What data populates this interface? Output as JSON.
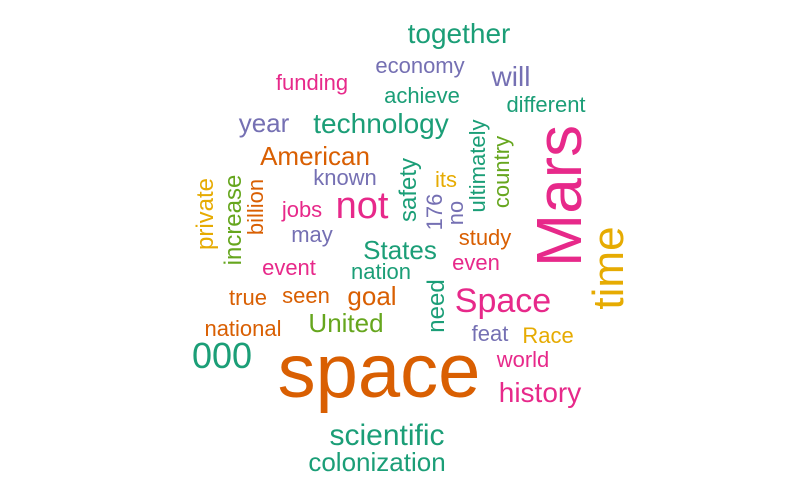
{
  "palette": {
    "teal": "#1b9e77",
    "orange": "#d95f02",
    "purple": "#7570b3",
    "magenta": "#e7298a",
    "green": "#66a61e",
    "gold": "#e6ab02"
  },
  "words": [
    {
      "text": "space",
      "color": "orange",
      "vertical": false
    },
    {
      "text": "Mars",
      "color": "magenta",
      "vertical": true
    },
    {
      "text": "time",
      "color": "gold",
      "vertical": true
    },
    {
      "text": "Space",
      "color": "magenta",
      "vertical": false
    },
    {
      "text": "not",
      "color": "magenta",
      "vertical": false
    },
    {
      "text": "scientific",
      "color": "teal",
      "vertical": false
    },
    {
      "text": "000",
      "color": "teal",
      "vertical": false
    },
    {
      "text": "colonization",
      "color": "teal",
      "vertical": false
    },
    {
      "text": "together",
      "color": "teal",
      "vertical": false
    },
    {
      "text": "history",
      "color": "magenta",
      "vertical": false
    },
    {
      "text": "technology",
      "color": "teal",
      "vertical": false
    },
    {
      "text": "American",
      "color": "orange",
      "vertical": false
    },
    {
      "text": "States",
      "color": "teal",
      "vertical": false
    },
    {
      "text": "United",
      "color": "green",
      "vertical": false
    },
    {
      "text": "will",
      "color": "purple",
      "vertical": false
    },
    {
      "text": "year",
      "color": "purple",
      "vertical": false
    },
    {
      "text": "goal",
      "color": "orange",
      "vertical": false
    },
    {
      "text": "national",
      "color": "orange",
      "vertical": false
    },
    {
      "text": "private",
      "color": "gold",
      "vertical": true
    },
    {
      "text": "increase",
      "color": "green",
      "vertical": true
    },
    {
      "text": "safety",
      "color": "teal",
      "vertical": true
    },
    {
      "text": "need",
      "color": "teal",
      "vertical": true
    },
    {
      "text": "economy",
      "color": "purple",
      "vertical": false
    },
    {
      "text": "achieve",
      "color": "teal",
      "vertical": false
    },
    {
      "text": "different",
      "color": "teal",
      "vertical": false
    },
    {
      "text": "funding",
      "color": "magenta",
      "vertical": false
    },
    {
      "text": "known",
      "color": "purple",
      "vertical": false
    },
    {
      "text": "its",
      "color": "gold",
      "vertical": false
    },
    {
      "text": "jobs",
      "color": "magenta",
      "vertical": false
    },
    {
      "text": "may",
      "color": "purple",
      "vertical": false
    },
    {
      "text": "event",
      "color": "magenta",
      "vertical": false
    },
    {
      "text": "nation",
      "color": "teal",
      "vertical": false
    },
    {
      "text": "true",
      "color": "orange",
      "vertical": false
    },
    {
      "text": "seen",
      "color": "orange",
      "vertical": false
    },
    {
      "text": "study",
      "color": "orange",
      "vertical": false
    },
    {
      "text": "even",
      "color": "magenta",
      "vertical": false
    },
    {
      "text": "feat",
      "color": "purple",
      "vertical": false
    },
    {
      "text": "Race",
      "color": "gold",
      "vertical": false
    },
    {
      "text": "world",
      "color": "magenta",
      "vertical": false
    },
    {
      "text": "billion",
      "color": "orange",
      "vertical": true
    },
    {
      "text": "176",
      "color": "purple",
      "vertical": true
    },
    {
      "text": "no",
      "color": "purple",
      "vertical": true
    },
    {
      "text": "ultimately",
      "color": "teal",
      "vertical": true
    },
    {
      "text": "country",
      "color": "green",
      "vertical": true
    }
  ]
}
